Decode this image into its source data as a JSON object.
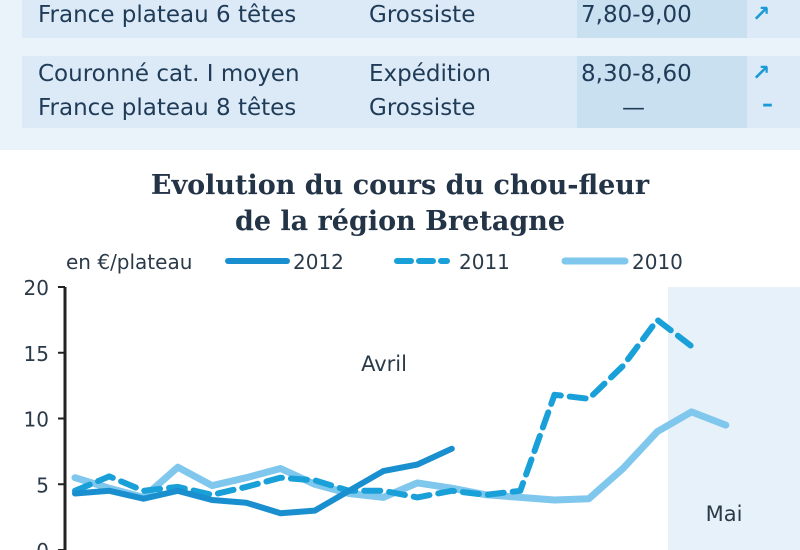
{
  "table": {
    "rows": [
      {
        "lines": [
          "France plateau 6 têtes"
        ],
        "stages": [
          "Grossiste"
        ],
        "prices": [
          "7,80-9,00"
        ],
        "trends": [
          "↗"
        ]
      },
      {
        "lines": [
          "Couronné cat. I moyen",
          "France plateau 8 têtes"
        ],
        "stages": [
          "Expédition",
          "Grossiste"
        ],
        "prices": [
          "8,30-8,60",
          "—"
        ],
        "trends": [
          "↗",
          "–"
        ]
      }
    ]
  },
  "chart_data": {
    "type": "line",
    "title": "Evolution du cours du chou-fleur de la région Bretagne",
    "title_lines": [
      "Evolution du cours du chou-fleur",
      "de la région Bretagne"
    ],
    "unit_label": "en €/plateau",
    "yticks": [
      "20",
      "15",
      "10",
      "5",
      "0"
    ],
    "ylim": [
      0,
      20
    ],
    "x_range": [
      1,
      21
    ],
    "annotations": [
      {
        "text": "Avril",
        "region": "april"
      },
      {
        "text": "Mai",
        "region": "may"
      }
    ],
    "series": [
      {
        "name": "2012",
        "style": "solid",
        "color": "#1a8fd0",
        "x": [
          1,
          2,
          3,
          4,
          5,
          6,
          7,
          8,
          9,
          10,
          11,
          12
        ],
        "y": [
          4.3,
          4.5,
          3.9,
          4.5,
          3.8,
          3.6,
          2.8,
          3.0,
          4.5,
          6.0,
          6.5,
          7.7
        ]
      },
      {
        "name": "2011",
        "style": "dashed",
        "color": "#19a0d8",
        "x": [
          1,
          2,
          3,
          4,
          5,
          6,
          7,
          8,
          9,
          10,
          11,
          12,
          13,
          14,
          15,
          16,
          17,
          18,
          19,
          20,
          21
        ],
        "y": [
          4.5,
          5.6,
          4.5,
          4.8,
          4.2,
          4.8,
          5.5,
          5.3,
          4.5,
          4.5,
          4.0,
          4.5,
          4.2,
          4.5,
          11.8,
          11.5,
          14.0,
          17.5,
          15.5,
          null,
          null
        ]
      },
      {
        "name": "2010",
        "style": "solid-light",
        "color": "#7fc7ec",
        "x": [
          1,
          2,
          3,
          4,
          5,
          6,
          7,
          8,
          9,
          10,
          11,
          12,
          13,
          14,
          15,
          16,
          17,
          18,
          19,
          20,
          21
        ],
        "y": [
          5.5,
          4.7,
          4.0,
          6.3,
          4.9,
          5.5,
          6.2,
          5.0,
          4.3,
          4.0,
          5.1,
          4.7,
          4.2,
          4.0,
          3.8,
          3.9,
          6.2,
          9.0,
          10.5,
          9.5,
          null
        ]
      }
    ],
    "grid": false,
    "legend": "top"
  }
}
